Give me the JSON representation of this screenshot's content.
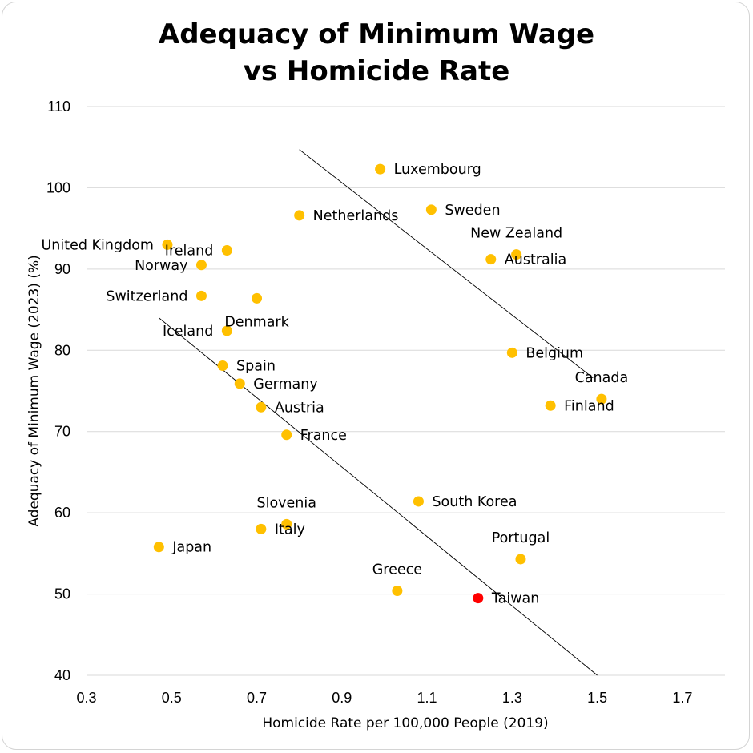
{
  "chart_data": {
    "type": "scatter",
    "title": [
      "Adequacy of Minimum Wage",
      "vs Homicide Rate"
    ],
    "xlabel": "Homicide Rate per 100,000 People (2019)",
    "ylabel": "Adequacy of Minimum Wage (2023) (%)",
    "xlim": [
      0.3,
      1.8
    ],
    "ylim": [
      40,
      110
    ],
    "xticks": [
      0.3,
      0.5,
      0.7,
      0.9,
      1.1,
      1.3,
      1.5,
      1.7
    ],
    "xtick_labels": [
      "0.3",
      "0.5",
      "0.7",
      "0.9",
      "1.1",
      "1.3",
      "1.5",
      "1.7"
    ],
    "yticks": [
      40,
      50,
      60,
      70,
      80,
      90,
      100,
      110
    ],
    "ytick_labels": [
      "40",
      "50",
      "60",
      "70",
      "80",
      "90",
      "100",
      "110"
    ],
    "grid": true,
    "colors": {
      "point": "#FFC000",
      "highlight": "#FF0000",
      "text": "#000000",
      "highlight_text": "#FF0000"
    },
    "points": [
      {
        "label": "Luxembourg",
        "x": 0.99,
        "y": 102.3,
        "anchor": "right"
      },
      {
        "label": "Sweden",
        "x": 1.11,
        "y": 97.3,
        "anchor": "right"
      },
      {
        "label": "Netherlands",
        "x": 0.8,
        "y": 96.6,
        "anchor": "right"
      },
      {
        "label": "New Zealand",
        "x": 1.31,
        "y": 91.8,
        "anchor": "above"
      },
      {
        "label": "Australia",
        "x": 1.25,
        "y": 91.2,
        "anchor": "right"
      },
      {
        "label": "United Kingdom",
        "x": 0.49,
        "y": 93.0,
        "anchor": "left"
      },
      {
        "label": "Ireland",
        "x": 0.63,
        "y": 92.3,
        "anchor": "left"
      },
      {
        "label": "Norway",
        "x": 0.57,
        "y": 90.5,
        "anchor": "left"
      },
      {
        "label": "Switzerland",
        "x": 0.57,
        "y": 86.7,
        "anchor": "left"
      },
      {
        "label": "Denmark",
        "x": 0.7,
        "y": 86.4,
        "anchor": "below"
      },
      {
        "label": "Iceland",
        "x": 0.63,
        "y": 82.4,
        "anchor": "left"
      },
      {
        "label": "Belgium",
        "x": 1.3,
        "y": 79.7,
        "anchor": "right"
      },
      {
        "label": "Spain",
        "x": 0.62,
        "y": 78.1,
        "anchor": "right"
      },
      {
        "label": "Germany",
        "x": 0.66,
        "y": 75.9,
        "anchor": "right"
      },
      {
        "label": "Canada",
        "x": 1.51,
        "y": 74.0,
        "anchor": "above"
      },
      {
        "label": "Finland",
        "x": 1.39,
        "y": 73.2,
        "anchor": "right"
      },
      {
        "label": "Austria",
        "x": 0.71,
        "y": 73.0,
        "anchor": "right"
      },
      {
        "label": "France",
        "x": 0.77,
        "y": 69.6,
        "anchor": "right"
      },
      {
        "label": "South Korea",
        "x": 1.08,
        "y": 61.4,
        "anchor": "right"
      },
      {
        "label": "Slovenia",
        "x": 0.77,
        "y": 58.6,
        "anchor": "above"
      },
      {
        "label": "Italy",
        "x": 0.71,
        "y": 58.0,
        "anchor": "right"
      },
      {
        "label": "Japan",
        "x": 0.47,
        "y": 55.8,
        "anchor": "right"
      },
      {
        "label": "Portugal",
        "x": 1.32,
        "y": 54.3,
        "anchor": "above"
      },
      {
        "label": "Greece",
        "x": 1.03,
        "y": 50.4,
        "anchor": "above"
      },
      {
        "label": "Taiwan",
        "x": 1.22,
        "y": 49.5,
        "anchor": "right",
        "highlight": true
      }
    ],
    "trendlines": [
      {
        "name": "upper-trendline",
        "x1": 0.8,
        "y1": 104.7,
        "x2": 1.49,
        "y2": 76.6
      },
      {
        "name": "lower-trendline",
        "x1": 0.47,
        "y1": 84.0,
        "x2": 1.5,
        "y2": 40.0
      }
    ]
  }
}
